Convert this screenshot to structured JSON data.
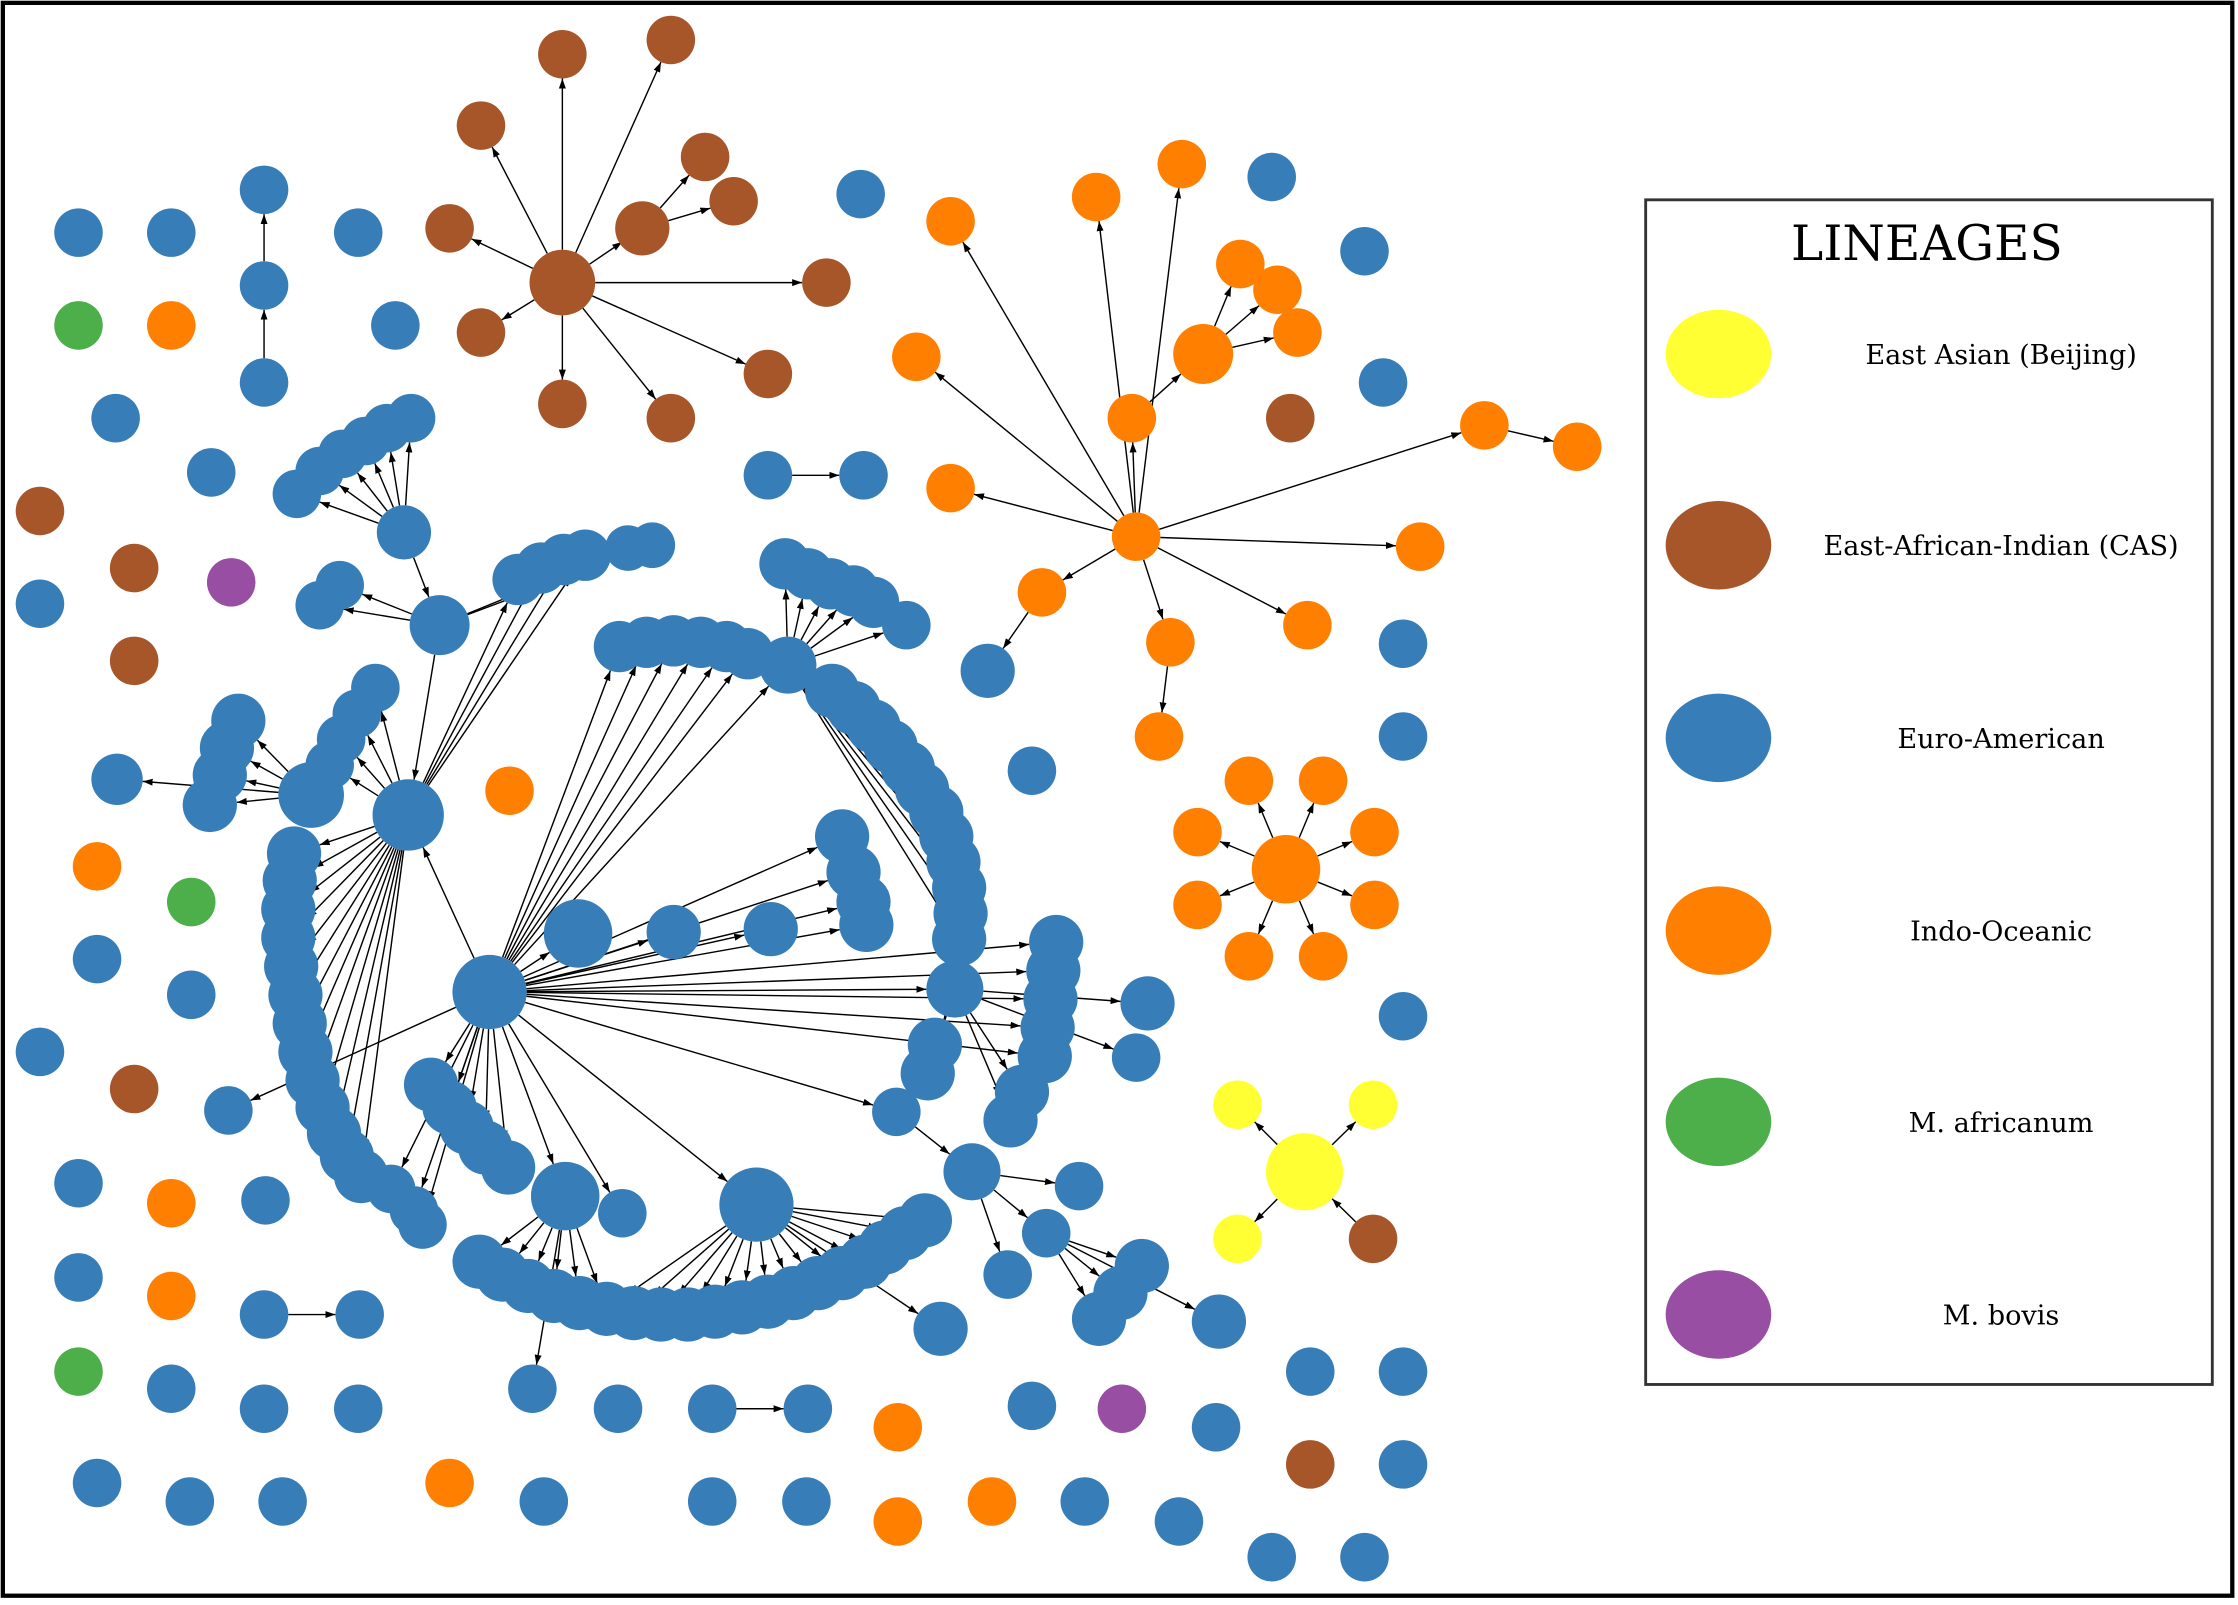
{
  "legend": {
    "title": "LINEAGES",
    "items": [
      {
        "label": "East Asian (Beijing)",
        "color": "#ffff33"
      },
      {
        "label": "East-African-Indian (CAS)",
        "color": "#a65628"
      },
      {
        "label": "Euro-American",
        "color": "#377eb8"
      },
      {
        "label": "Indo-Oceanic",
        "color": "#ff7f00"
      },
      {
        "label": "M. africanum",
        "color": "#4daf4a"
      },
      {
        "label": "M. bovis",
        "color": "#984ea3"
      }
    ]
  },
  "colors": {
    "beijing": "#ffff33",
    "cas": "#a65628",
    "euro": "#377eb8",
    "indo": "#ff7f00",
    "africanum": "#4daf4a",
    "bovis": "#984ea3",
    "edge": "#000000"
  }
}
